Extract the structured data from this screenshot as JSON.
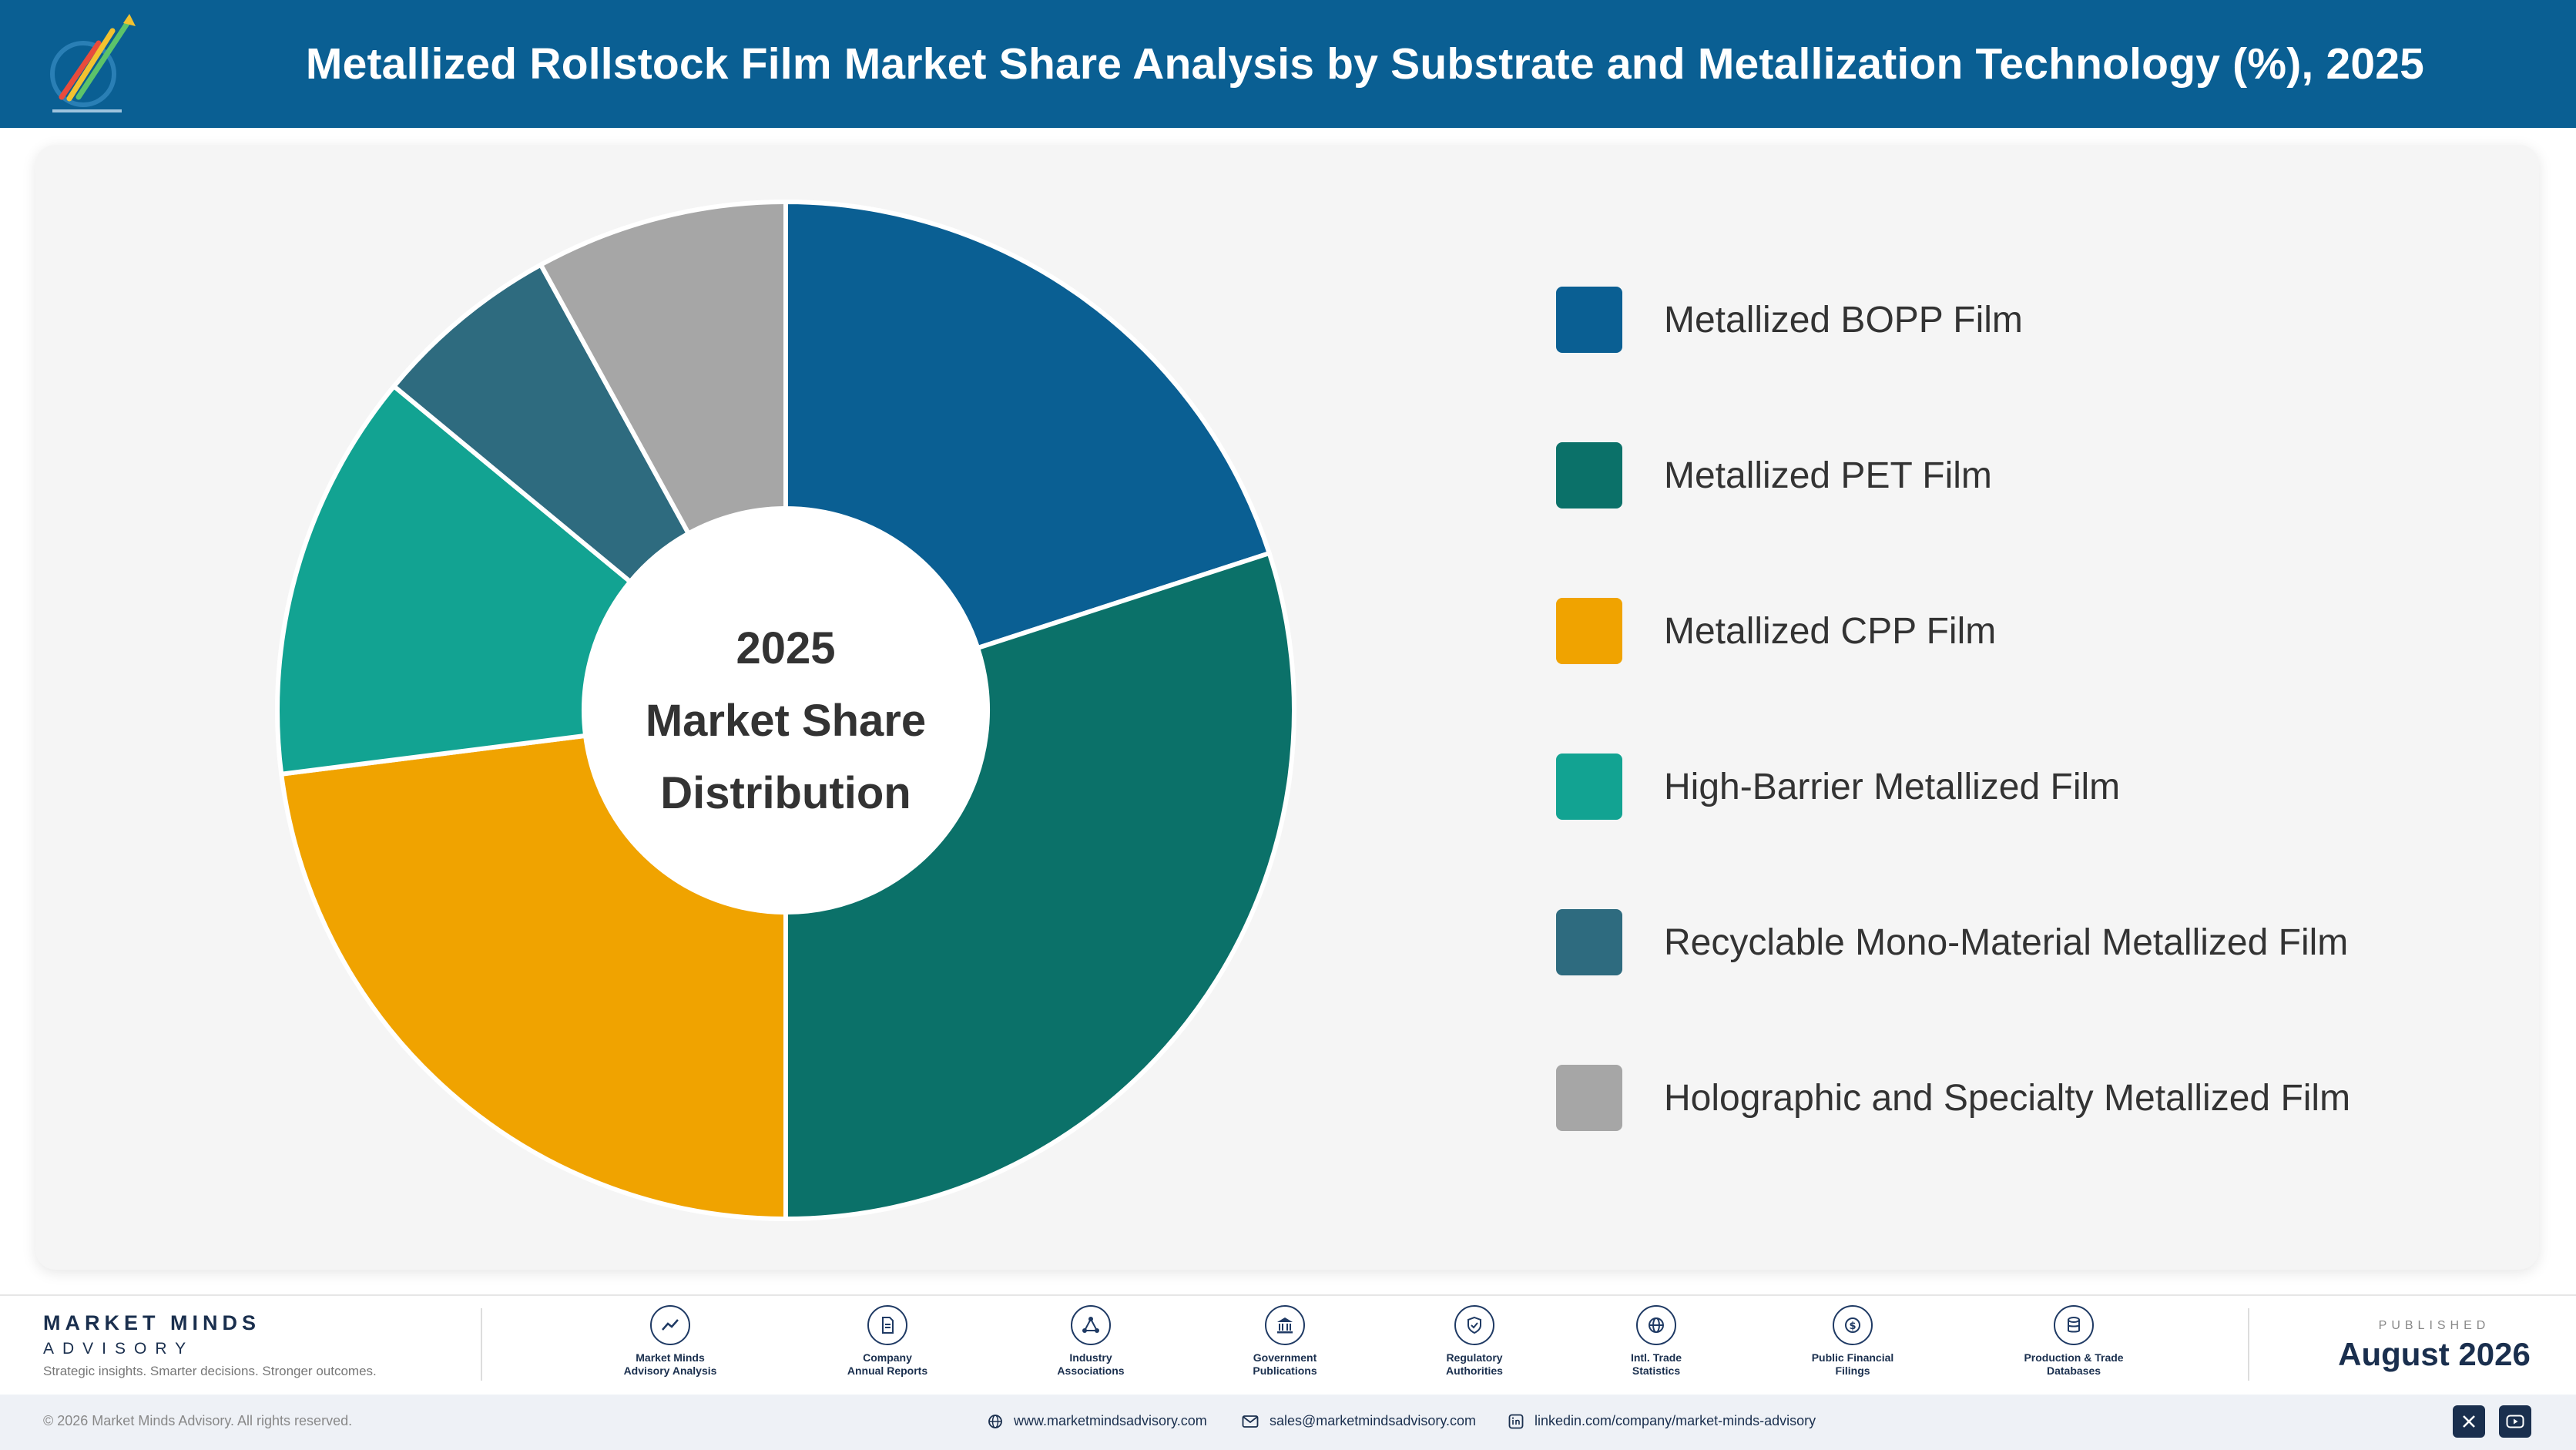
{
  "header": {
    "title": "Metallized Rollstock Film Market Share Analysis by Substrate and Metallization Technology (%), 2025",
    "logo_icon": "market-minds-logo-icon"
  },
  "chart_center_label": {
    "line1": "2025",
    "line2": "Market Share",
    "line3": "Distribution"
  },
  "chart_data": {
    "type": "pie",
    "title": "Metallized Rollstock Film Market Share Analysis by Substrate and Metallization Technology (%), 2025",
    "donut": true,
    "categories": [
      "Metallized BOPP Film",
      "Metallized PET Film",
      "Metallized CPP Film",
      "High-Barrier Metallized Film",
      "Recyclable Mono-Material Metallized Film",
      "Holographic and Specialty Metallized Film"
    ],
    "values": [
      20,
      30,
      23,
      13,
      6,
      8
    ],
    "colors": [
      "#0a5f93",
      "#0b7169",
      "#f0a300",
      "#12a392",
      "#2e6b7f",
      "#a6a6a6"
    ],
    "legend_position": "right"
  },
  "footer": {
    "brand_name": "MARKET MINDS",
    "brand_sub": "ADVISORY",
    "tagline": "Strategic insights. Smarter decisions. Stronger outcomes.",
    "sources": [
      {
        "line1": "Market Minds",
        "line2": "Advisory Analysis",
        "icon": "trend-chart-icon"
      },
      {
        "line1": "Company",
        "line2": "Annual Reports",
        "icon": "document-icon"
      },
      {
        "line1": "Industry",
        "line2": "Associations",
        "icon": "network-icon"
      },
      {
        "line1": "Government",
        "line2": "Publications",
        "icon": "government-building-icon"
      },
      {
        "line1": "Regulatory",
        "line2": "Authorities",
        "icon": "shield-check-icon"
      },
      {
        "line1": "Intl. Trade",
        "line2": "Statistics",
        "icon": "globe-icon"
      },
      {
        "line1": "Public Financial",
        "line2": "Filings",
        "icon": "currency-icon"
      },
      {
        "line1": "Production & Trade",
        "line2": "Databases",
        "icon": "database-icon"
      }
    ],
    "published_label": "PUBLISHED",
    "published_date": "August 2026",
    "copyright": "© 2026 Market Minds Advisory. All rights reserved.",
    "website": "www.marketmindsadvisory.com",
    "email": "sales@marketmindsadvisory.com",
    "linkedin": "linkedin.com/company/market-minds-advisory",
    "social_icons": [
      "x-icon",
      "youtube-icon"
    ]
  }
}
